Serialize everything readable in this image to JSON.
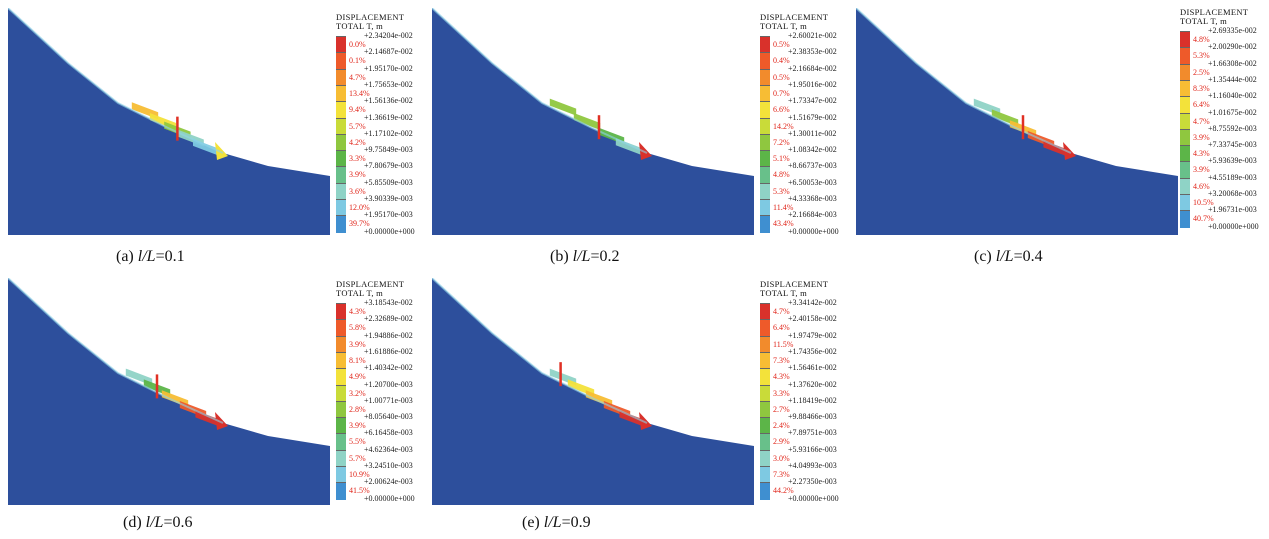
{
  "colors": {
    "scale": [
      "#d9312b",
      "#ee5a2a",
      "#f28b2c",
      "#f7bd34",
      "#f3e23a",
      "#c9db39",
      "#8fc73f",
      "#5cb548",
      "#68c08a",
      "#8fd3c6",
      "#7ec9e2",
      "#3f8fd0",
      "#2a5fab"
    ],
    "background_slope": "#2d4f9c",
    "marker": "#e03024"
  },
  "legend_header": [
    "DISPLACEMENT",
    "TOTAL T, m"
  ],
  "panels": [
    {
      "caption_prefix": "(a) ",
      "caption_var": "l/L",
      "caption_value": "=0.1",
      "percentages": [
        "0.0%",
        "0.1%",
        "4.7%",
        "13.4%",
        "9.4%",
        "5.7%",
        "4.2%",
        "3.3%",
        "3.9%",
        "3.6%",
        "12.0%",
        "39.7%"
      ],
      "values": [
        "+2.34204e-002",
        "+2.14687e-002",
        "+1.95170e-002",
        "+1.75653e-002",
        "+1.56136e-002",
        "+1.36619e-002",
        "+1.17102e-002",
        "+9.75849e-003",
        "+7.80679e-003",
        "+5.85509e-003",
        "+3.90339e-003",
        "+1.95170e-003",
        "+0.00000e+000"
      ],
      "bands": [
        [
          0.35,
          3
        ],
        [
          0.5,
          4
        ],
        [
          0.62,
          6
        ],
        [
          0.73,
          9
        ],
        [
          0.86,
          10
        ]
      ],
      "toe_band": 4,
      "marker_position": 0.62
    },
    {
      "caption_prefix": "(b) ",
      "caption_var": "l/L",
      "caption_value": "=0.2",
      "percentages": [
        "0.5%",
        "0.4%",
        "0.5%",
        "0.7%",
        "6.6%",
        "14.2%",
        "7.2%",
        "5.1%",
        "4.8%",
        "5.3%",
        "11.4%",
        "43.4%"
      ],
      "values": [
        "+2.60021e-002",
        "+2.38353e-002",
        "+2.16684e-002",
        "+1.95016e-002",
        "+1.73347e-002",
        "+1.51679e-002",
        "+1.30011e-002",
        "+1.08342e-002",
        "+8.66737e-003",
        "+6.50053e-003",
        "+4.33368e-003",
        "+2.16684e-003",
        "+0.00000e+000"
      ],
      "bands": [
        [
          0.3,
          6
        ],
        [
          0.5,
          6
        ],
        [
          0.7,
          7
        ],
        [
          0.85,
          9
        ]
      ],
      "toe_band": 0,
      "marker_position": 0.6
    },
    {
      "caption_prefix": "(c) ",
      "caption_var": "l/L",
      "caption_value": "=0.4",
      "percentages": [
        "4.8%",
        "5.3%",
        "2.5%",
        "8.3%",
        "6.4%",
        "4.7%",
        "3.9%",
        "4.3%",
        "3.9%",
        "4.6%",
        "10.5%",
        "40.7%"
      ],
      "values": [
        "+2.69335e-002",
        "+2.00290e-002",
        "+1.66308e-002",
        "+1.35444e-002",
        "+1.16040e-002",
        "+1.01675e-002",
        "+8.75592e-003",
        "+7.33745e-003",
        "+5.93639e-003",
        "+4.55189e-003",
        "+3.20068e-003",
        "+1.96731e-003",
        "+0.00000e+000"
      ],
      "bands": [
        [
          0.3,
          9
        ],
        [
          0.45,
          6
        ],
        [
          0.6,
          3
        ],
        [
          0.75,
          1
        ],
        [
          0.88,
          0
        ]
      ],
      "toe_band": 0,
      "marker_position": 0.6
    },
    {
      "caption_prefix": "(d) ",
      "caption_var": "l/L",
      "caption_value": "=0.6",
      "percentages": [
        "4.3%",
        "5.8%",
        "3.9%",
        "8.1%",
        "4.9%",
        "3.2%",
        "2.8%",
        "3.9%",
        "5.5%",
        "5.7%",
        "10.9%",
        "41.5%"
      ],
      "values": [
        "+3.18543e-002",
        "+2.32689e-002",
        "+1.94886e-002",
        "+1.61886e-002",
        "+1.40342e-002",
        "+1.20700e-003",
        "+1.00771e-003",
        "+8.05640e-003",
        "+6.16458e-003",
        "+4.62364e-003",
        "+3.24510e-003",
        "+2.00624e-003",
        "+0.00000e+000"
      ],
      "bands": [
        [
          0.3,
          9
        ],
        [
          0.45,
          7
        ],
        [
          0.6,
          3
        ],
        [
          0.75,
          1
        ],
        [
          0.88,
          0
        ]
      ],
      "toe_band": 0,
      "marker_position": 0.45
    },
    {
      "caption_prefix": "(e) ",
      "caption_var": "l/L",
      "caption_value": "=0.9",
      "percentages": [
        "4.7%",
        "6.4%",
        "11.5%",
        "7.3%",
        "4.3%",
        "3.3%",
        "2.7%",
        "2.4%",
        "2.9%",
        "3.0%",
        "7.3%",
        "44.2%"
      ],
      "values": [
        "+3.34142e-002",
        "+2.40158e-002",
        "+1.97479e-002",
        "+1.74356e-002",
        "+1.56461e-002",
        "+1.37620e-002",
        "+1.18419e-002",
        "+9.88466e-003",
        "+7.89751e-003",
        "+5.93166e-003",
        "+4.04993e-003",
        "+2.27350e-003",
        "+0.00000e+000"
      ],
      "bands": [
        [
          0.3,
          9
        ],
        [
          0.45,
          4
        ],
        [
          0.6,
          3
        ],
        [
          0.75,
          1
        ],
        [
          0.88,
          0
        ]
      ],
      "toe_band": 0,
      "marker_position": 0.28
    }
  ]
}
